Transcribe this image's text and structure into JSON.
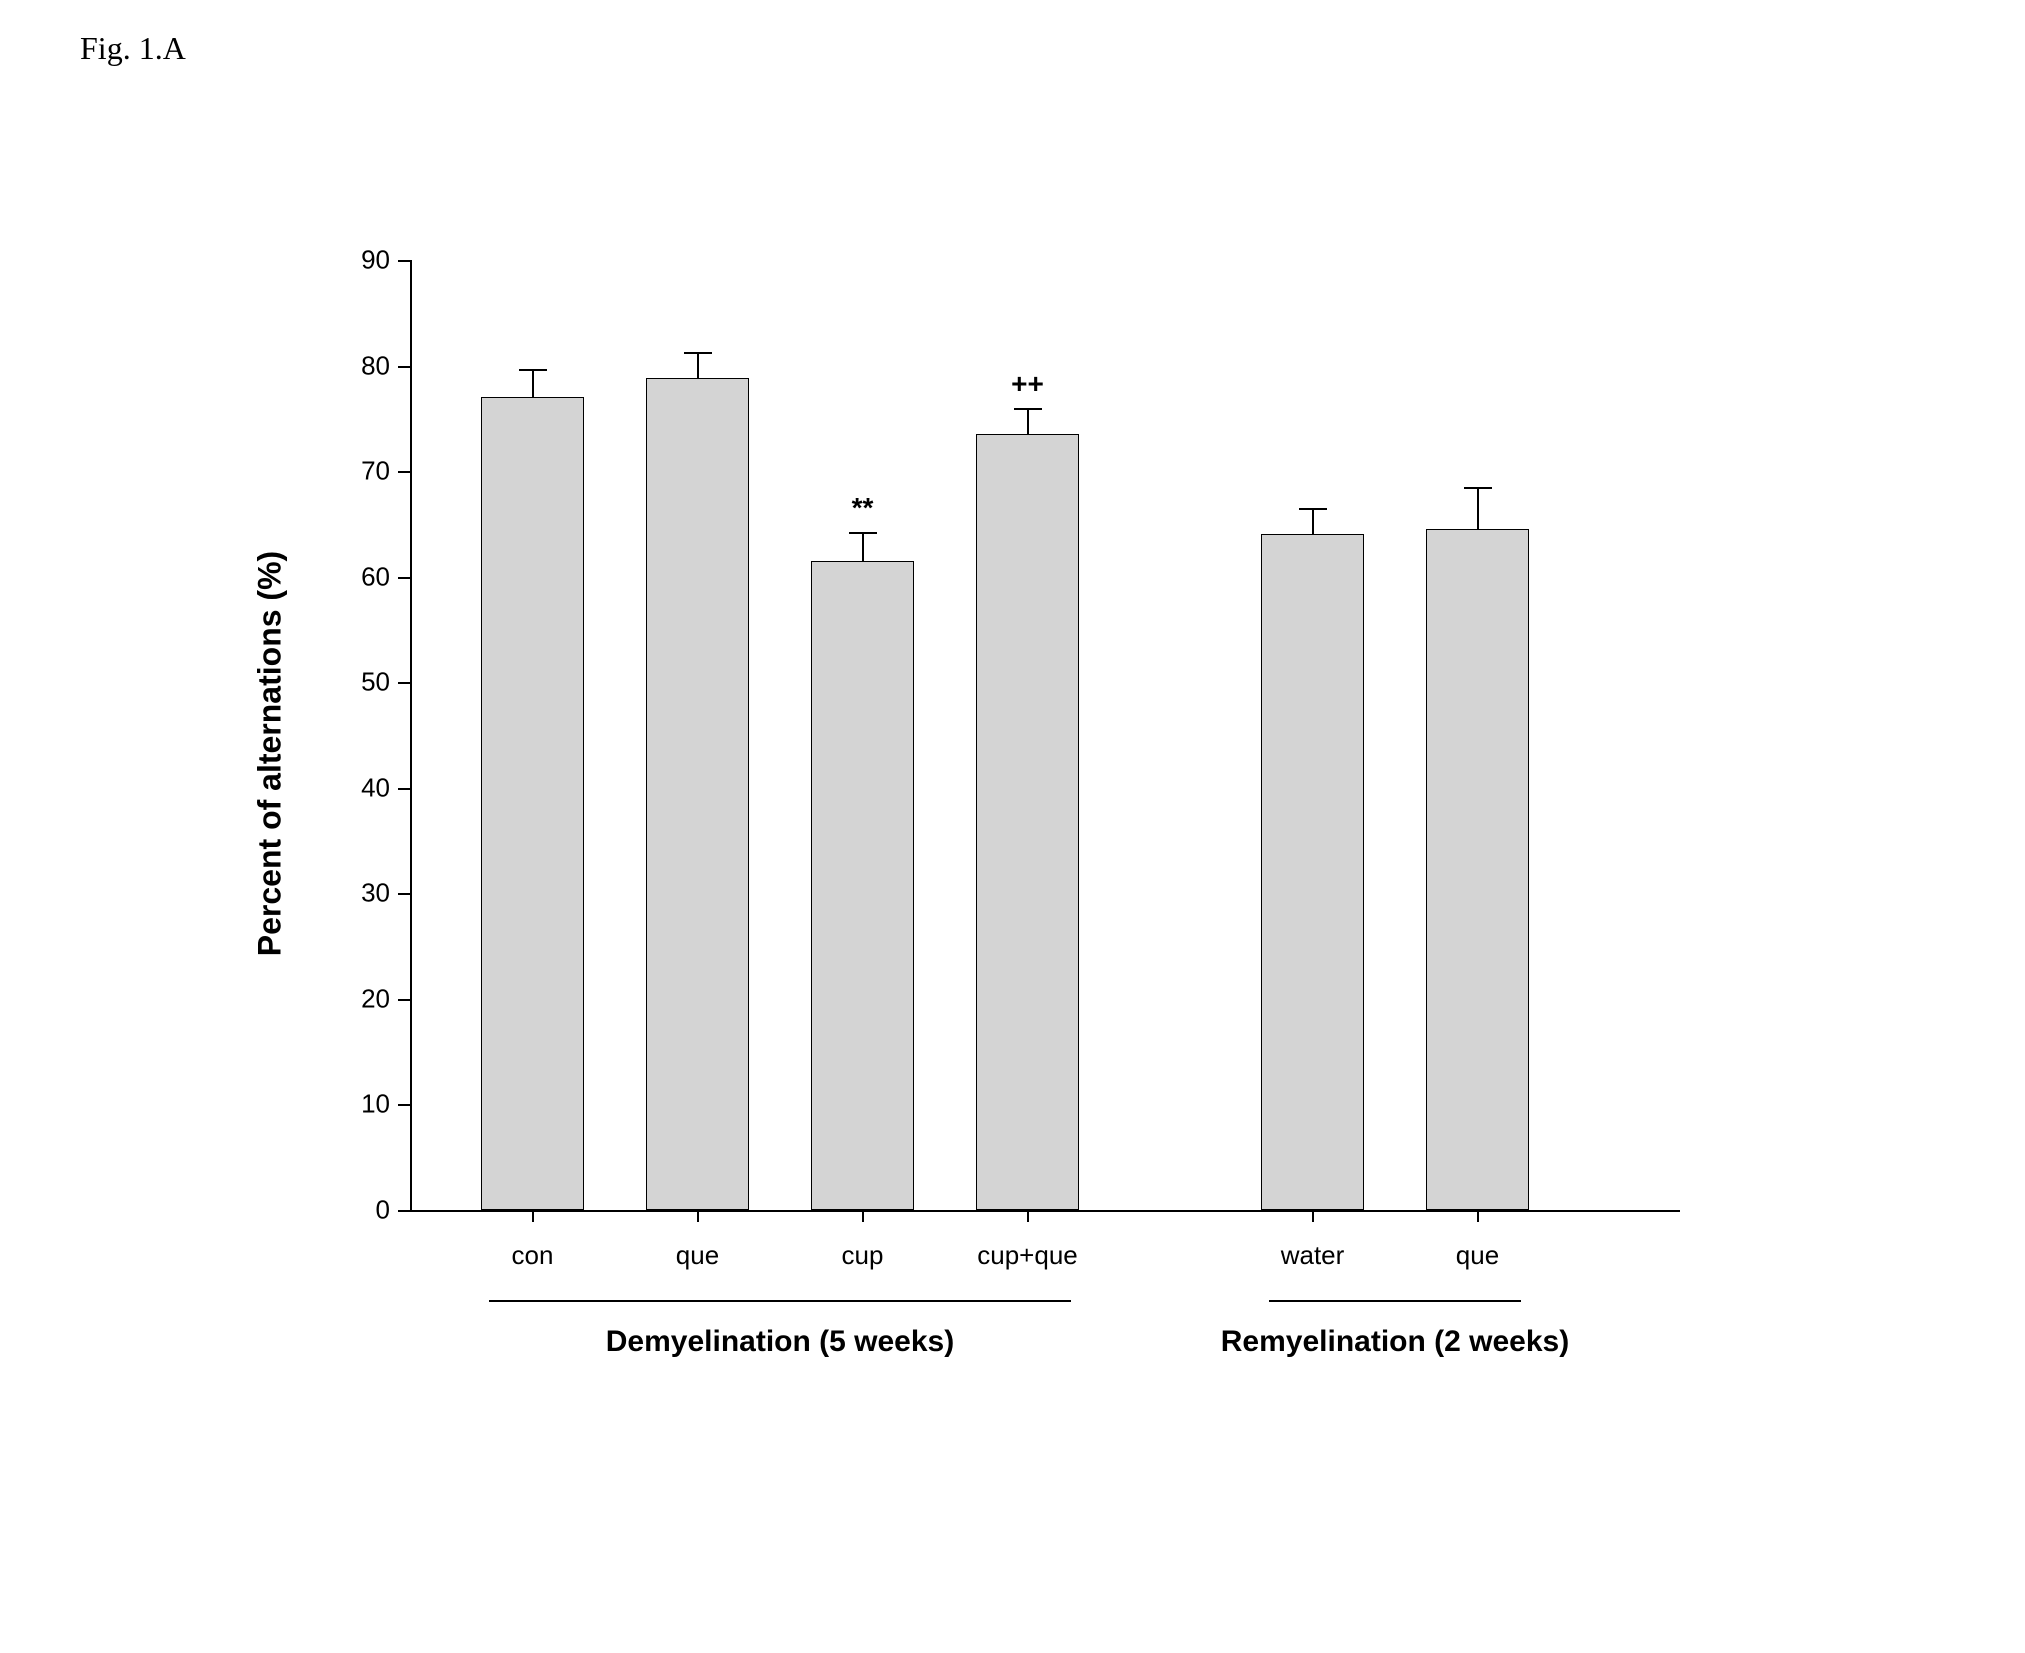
{
  "figure_label": "Fig. 1.A",
  "chart": {
    "type": "bar",
    "y_axis_label": "Percent of alternations (%)",
    "ylim": [
      0,
      90
    ],
    "ytick_step": 10,
    "yticks": [
      0,
      10,
      20,
      30,
      40,
      50,
      60,
      70,
      80,
      90
    ],
    "bar_color": "#d4d4d4",
    "bar_border_color": "#000000",
    "background_color": "#ffffff",
    "axis_color": "#000000",
    "bar_width_ratio": 0.62,
    "label_fontsize": 32,
    "tick_fontsize": 26,
    "group_label_fontsize": 30,
    "groups": [
      {
        "label": "Demyelination (5 weeks)",
        "bars": [
          {
            "category": "con",
            "value": 77,
            "error": 2.7,
            "annotation": ""
          },
          {
            "category": "que",
            "value": 78.8,
            "error": 2.5,
            "annotation": ""
          },
          {
            "category": "cup",
            "value": 61.5,
            "error": 2.7,
            "annotation": "**"
          },
          {
            "category": "cup+que",
            "value": 73.5,
            "error": 2.5,
            "annotation": "++"
          }
        ]
      },
      {
        "label": "Remyelination (2 weeks)",
        "bars": [
          {
            "category": "water",
            "value": 64,
            "error": 2.5,
            "annotation": ""
          },
          {
            "category": "que",
            "value": 64.5,
            "error": 4,
            "annotation": ""
          }
        ]
      }
    ]
  }
}
